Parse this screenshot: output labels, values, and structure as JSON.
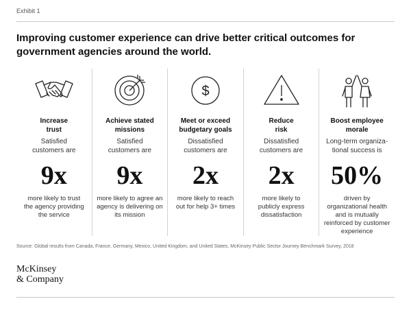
{
  "exhibit_label": "Exhibit 1",
  "headline": "Improving customer experience can drive better critical outcomes for government agencies around the world.",
  "columns": [
    {
      "icon": "handshake-icon",
      "title_line1": "Increase",
      "title_line2": "trust",
      "intro_line1": "Satisfied",
      "intro_line2": "customers are",
      "stat": "9x",
      "desc_line1": "more likely to trust",
      "desc_line2": "the agency providing",
      "desc_line3": "the service",
      "desc_line4": ""
    },
    {
      "icon": "target-icon",
      "title_line1": "Achieve stated",
      "title_line2": "missions",
      "intro_line1": "Satisfied",
      "intro_line2": "customers are",
      "stat": "9x",
      "desc_line1": "more likely to agree an",
      "desc_line2": "agency is delivering on",
      "desc_line3": "its mission",
      "desc_line4": ""
    },
    {
      "icon": "dollar-coin-icon",
      "title_line1": "Meet or exceed",
      "title_line2": "budgetary goals",
      "intro_line1": "Dissatisfied",
      "intro_line2": "customers are",
      "stat": "2x",
      "desc_line1": "more likely to reach",
      "desc_line2": "out for help 3+ times",
      "desc_line3": "",
      "desc_line4": ""
    },
    {
      "icon": "warning-triangle-icon",
      "title_line1": "Reduce",
      "title_line2": "risk",
      "intro_line1": "Dissatisfied",
      "intro_line2": "customers are",
      "stat": "2x",
      "desc_line1": "more likely to",
      "desc_line2": "publicly express",
      "desc_line3": "dissatisfaction",
      "desc_line4": ""
    },
    {
      "icon": "employees-high-five-icon",
      "title_line1": "Boost employee",
      "title_line2": "morale",
      "intro_line1": "Long-term organiza-",
      "intro_line2": "tional success is",
      "stat": "50%",
      "desc_line1": "driven by",
      "desc_line2": "organizational health",
      "desc_line3": "and is mutually",
      "desc_line4": "reinforced by customer",
      "desc_line5": "experience"
    }
  ],
  "source": "Source: Global results from Canada, France, Germany, Mexico, United Kingdom, and United States, McKinsey Public Sector Journey Benchmark Survey, 2018",
  "logo": {
    "line1": "McKinsey",
    "line2": "& Company"
  }
}
